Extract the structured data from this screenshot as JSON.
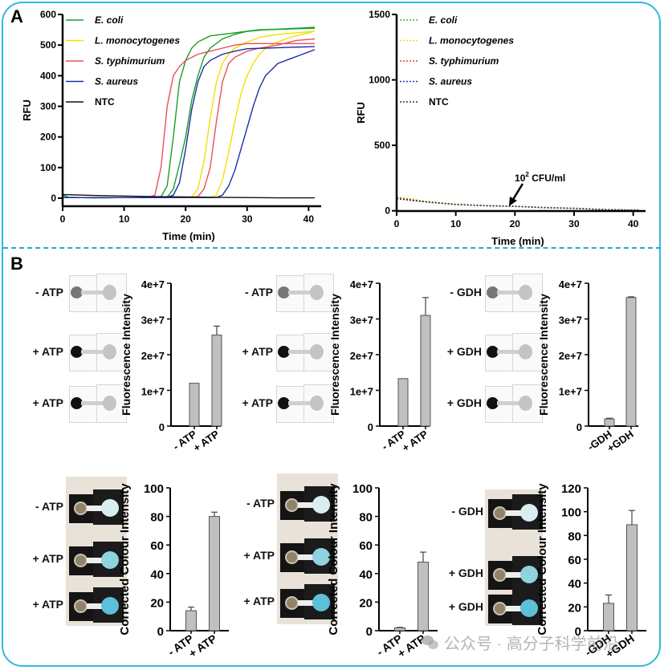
{
  "panels": {
    "a_label": "A",
    "b_label": "B"
  },
  "watermark": "公众号 · 高分子科学前沿",
  "chart_data": [
    {
      "id": "A-left",
      "type": "line",
      "xlabel": "Time (min)",
      "ylabel": "RFU",
      "xlim": [
        0,
        41
      ],
      "ylim": [
        0,
        600
      ],
      "xticks": [
        0,
        10,
        20,
        30,
        40
      ],
      "yticks": [
        0,
        100,
        200,
        300,
        400,
        500,
        600
      ],
      "legend_position": "top-left",
      "line_style": "solid",
      "series": [
        {
          "name": "E. coli",
          "italic": true,
          "color": "#1a9e2a",
          "curves": [
            {
              "x": [
                0,
                1,
                5,
                10,
                15,
                16,
                17,
                18,
                19,
                20,
                21,
                22,
                24,
                26,
                28,
                30,
                32,
                35,
                38,
                41
              ],
              "y": [
                10,
                3,
                1,
                2,
                2,
                5,
                40,
                200,
                380,
                450,
                490,
                510,
                530,
                535,
                540,
                545,
                550,
                552,
                555,
                558
              ]
            },
            {
              "x": [
                0,
                1,
                5,
                10,
                15,
                17,
                18,
                19,
                20,
                21,
                22,
                23,
                24,
                26,
                28,
                30,
                33,
                36,
                41
              ],
              "y": [
                10,
                3,
                1,
                2,
                2,
                3,
                30,
                110,
                200,
                320,
                400,
                460,
                490,
                520,
                535,
                545,
                550,
                552,
                555
              ]
            }
          ]
        },
        {
          "name": "L. monocytogenes",
          "italic": true,
          "color": "#f2e000",
          "curves": [
            {
              "x": [
                0,
                10,
                20,
                21,
                22,
                23,
                24,
                25,
                26,
                27,
                28,
                30,
                32,
                35,
                38,
                41
              ],
              "y": [
                2,
                2,
                2,
                5,
                30,
                120,
                260,
                380,
                440,
                470,
                490,
                510,
                525,
                535,
                540,
                545
              ]
            },
            {
              "x": [
                0,
                10,
                20,
                24,
                25,
                26,
                27,
                28,
                29,
                30,
                31,
                32,
                33,
                35,
                37,
                39,
                41
              ],
              "y": [
                2,
                2,
                2,
                3,
                10,
                60,
                150,
                250,
                340,
                400,
                440,
                470,
                490,
                510,
                525,
                535,
                545
              ]
            }
          ]
        },
        {
          "name": "S. typhimurium",
          "italic": true,
          "color": "#e8505a",
          "curves": [
            {
              "x": [
                0,
                10,
                14,
                15,
                16,
                17,
                18,
                19,
                20,
                22,
                24,
                26,
                28,
                30,
                33,
                36,
                41
              ],
              "y": [
                2,
                2,
                2,
                10,
                100,
                300,
                400,
                430,
                450,
                470,
                480,
                490,
                500,
                505,
                505,
                505,
                505
              ]
            },
            {
              "x": [
                0,
                10,
                20,
                22,
                23,
                24,
                25,
                26,
                27,
                28,
                29,
                30,
                32,
                35,
                38,
                41
              ],
              "y": [
                2,
                2,
                2,
                5,
                30,
                100,
                250,
                380,
                440,
                460,
                470,
                480,
                490,
                500,
                515,
                520
              ]
            }
          ]
        },
        {
          "name": "S. aureus",
          "italic": true,
          "color": "#1d2fa5",
          "curves": [
            {
              "x": [
                0,
                10,
                17,
                18,
                19,
                20,
                21,
                22,
                23,
                24,
                25,
                26,
                28,
                30,
                33,
                36,
                41
              ],
              "y": [
                2,
                2,
                2,
                10,
                50,
                160,
                290,
                380,
                430,
                450,
                460,
                470,
                480,
                488,
                490,
                492,
                495
              ]
            },
            {
              "x": [
                0,
                10,
                20,
                25,
                26,
                27,
                28,
                29,
                30,
                31,
                32,
                33,
                34,
                35,
                37,
                39,
                41
              ],
              "y": [
                2,
                2,
                2,
                2,
                10,
                40,
                90,
                160,
                230,
                300,
                360,
                400,
                420,
                440,
                455,
                470,
                485
              ]
            }
          ]
        },
        {
          "name": "NTC",
          "italic": false,
          "color": "#111111",
          "curves": [
            {
              "x": [
                0,
                5,
                10,
                15,
                20,
                25,
                30,
                35,
                41
              ],
              "y": [
                12,
                9,
                7,
                5,
                4,
                3,
                2,
                1,
                1
              ]
            }
          ]
        }
      ]
    },
    {
      "id": "A-right",
      "type": "line",
      "xlabel": "Time (min)",
      "ylabel": "RFU",
      "xlim": [
        0,
        41
      ],
      "ylim": [
        -100,
        1500
      ],
      "xticks": [
        0,
        10,
        20,
        30,
        40
      ],
      "yticks": [
        0,
        500,
        1000,
        1500
      ],
      "legend_position": "top-left",
      "line_style": "dotted",
      "annotation": {
        "text_base": "10",
        "text_sup": "2",
        "text_rest": " CFU/ml",
        "arrow_to": [
          19,
          35
        ],
        "text_at": [
          22,
          250
        ]
      },
      "series": [
        {
          "name": "E. coli",
          "italic": true,
          "color": "#2fbf3a",
          "x": [
            0,
            5,
            10,
            15,
            20,
            25,
            30,
            35,
            41
          ],
          "y": [
            100,
            70,
            50,
            40,
            35,
            25,
            20,
            10,
            5
          ]
        },
        {
          "name": "L. monocytogenes",
          "italic": true,
          "color": "#f2e000",
          "x": [
            0,
            5,
            10,
            15,
            20,
            25,
            30,
            35,
            41
          ],
          "y": [
            110,
            72,
            52,
            41,
            35,
            26,
            20,
            11,
            5
          ]
        },
        {
          "name": "S. typhimurium",
          "italic": true,
          "color": "#e23b3b",
          "x": [
            0,
            5,
            10,
            15,
            20,
            25,
            30,
            35,
            41
          ],
          "y": [
            98,
            70,
            48,
            40,
            34,
            25,
            19,
            10,
            4
          ]
        },
        {
          "name": "S. aureus",
          "italic": true,
          "color": "#2233cc",
          "x": [
            0,
            5,
            10,
            15,
            20,
            25,
            30,
            35,
            41
          ],
          "y": [
            95,
            68,
            49,
            39,
            34,
            24,
            19,
            10,
            4
          ]
        },
        {
          "name": "NTC",
          "italic": false,
          "color": "#333333",
          "x": [
            0,
            5,
            10,
            15,
            20,
            25,
            30,
            35,
            41
          ],
          "y": [
            92,
            67,
            48,
            38,
            33,
            24,
            18,
            9,
            4
          ]
        }
      ]
    },
    {
      "id": "B-fluor-1",
      "type": "bar",
      "ylabel": "Fluorescence Intensity",
      "ylim": [
        0,
        40000000
      ],
      "yticks": [
        0,
        10000000,
        20000000,
        30000000,
        40000000
      ],
      "ytick_labels": [
        "0",
        "1e+7",
        "2e+7",
        "3e+7",
        "4e+7"
      ],
      "categories": [
        "- ATP",
        "+ ATP"
      ],
      "values": [
        12000000,
        25500000
      ],
      "errors": [
        0,
        2500000
      ],
      "row_labels": [
        "- ATP",
        "+ ATP",
        "+ ATP"
      ]
    },
    {
      "id": "B-fluor-2",
      "type": "bar",
      "ylabel": "Fluorescence Intensity",
      "ylim": [
        0,
        40000000
      ],
      "yticks": [
        0,
        10000000,
        20000000,
        30000000,
        40000000
      ],
      "ytick_labels": [
        "0",
        "1e+7",
        "2e+7",
        "3e+7",
        "4e+7"
      ],
      "categories": [
        "- ATP",
        "+ ATP"
      ],
      "values": [
        13300000,
        31000000
      ],
      "errors": [
        0,
        5000000
      ],
      "row_labels": [
        "- ATP",
        "+ ATP",
        "+ ATP"
      ]
    },
    {
      "id": "B-fluor-3",
      "type": "bar",
      "ylabel": "Fluorescence Intensity",
      "ylim": [
        0,
        40000000
      ],
      "yticks": [
        0,
        10000000,
        20000000,
        30000000,
        40000000
      ],
      "ytick_labels": [
        "0",
        "1e+7",
        "2e+7",
        "3e+7",
        "4e+7"
      ],
      "categories": [
        "-GDH",
        "+GDH"
      ],
      "values": [
        2000000,
        36000000
      ],
      "errors": [
        200000,
        200000
      ],
      "row_labels": [
        "- GDH",
        "+ GDH",
        "+ GDH"
      ]
    },
    {
      "id": "B-colour-1",
      "type": "bar",
      "ylabel": "Corrected Colour Intensity",
      "ylim": [
        0,
        100
      ],
      "yticks": [
        0,
        20,
        40,
        60,
        80,
        100
      ],
      "ytick_labels": [
        "0",
        "20",
        "40",
        "60",
        "80",
        "100"
      ],
      "categories": [
        "- ATP",
        "+ ATP"
      ],
      "values": [
        14,
        80
      ],
      "errors": [
        2.5,
        3
      ],
      "row_labels": [
        "- ATP",
        "+ ATP",
        "+ ATP"
      ]
    },
    {
      "id": "B-colour-2",
      "type": "bar",
      "ylabel": "Corrected Colour Intensity",
      "ylim": [
        0,
        100
      ],
      "yticks": [
        0,
        20,
        40,
        60,
        80,
        100
      ],
      "ytick_labels": [
        "0",
        "20",
        "40",
        "60",
        "80",
        "100"
      ],
      "categories": [
        "- ATP",
        "+ ATP"
      ],
      "values": [
        2,
        48
      ],
      "errors": [
        0.3,
        7
      ],
      "row_labels": [
        "- ATP",
        "+ ATP",
        "+ ATP"
      ]
    },
    {
      "id": "B-colour-3",
      "type": "bar",
      "ylabel": "Corrected Colour Intensity",
      "ylim": [
        0,
        120
      ],
      "yticks": [
        0,
        20,
        40,
        60,
        80,
        100,
        120
      ],
      "ytick_labels": [
        "0",
        "20",
        "40",
        "60",
        "80",
        "100",
        "120"
      ],
      "categories": [
        "-GDH",
        "+GDH"
      ],
      "values": [
        23,
        89
      ],
      "errors": [
        7,
        12
      ],
      "row_labels": [
        "- GDH",
        "+ GDH",
        "+ GDH"
      ]
    }
  ]
}
